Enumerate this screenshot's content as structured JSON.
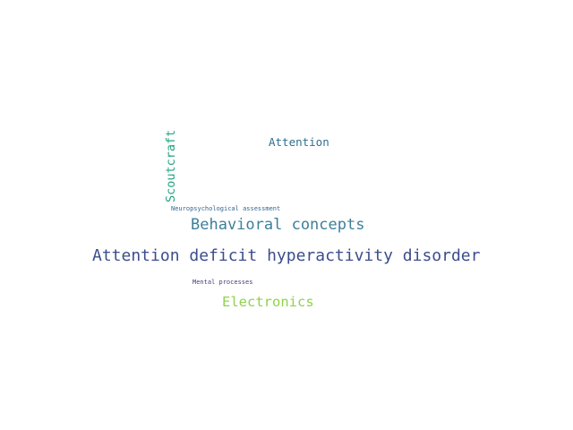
{
  "words": [
    {
      "text": "Attention deficit hyperactivity disorder",
      "color": "#3b4d8c",
      "orientation": "horizontal"
    },
    {
      "text": "Behavioral concepts",
      "color": "#3d7f99",
      "orientation": "horizontal"
    },
    {
      "text": "Attention",
      "color": "#2f6f8e",
      "orientation": "horizontal"
    },
    {
      "text": "Scoutcraft",
      "color": "#26a383",
      "orientation": "vertical"
    },
    {
      "text": "Neuropsychological assessment",
      "color": "#33668f",
      "orientation": "horizontal"
    },
    {
      "text": "Mental processes",
      "color": "#473a7c",
      "orientation": "horizontal"
    },
    {
      "text": "Electronics",
      "color": "#8fd34a",
      "orientation": "horizontal"
    }
  ]
}
